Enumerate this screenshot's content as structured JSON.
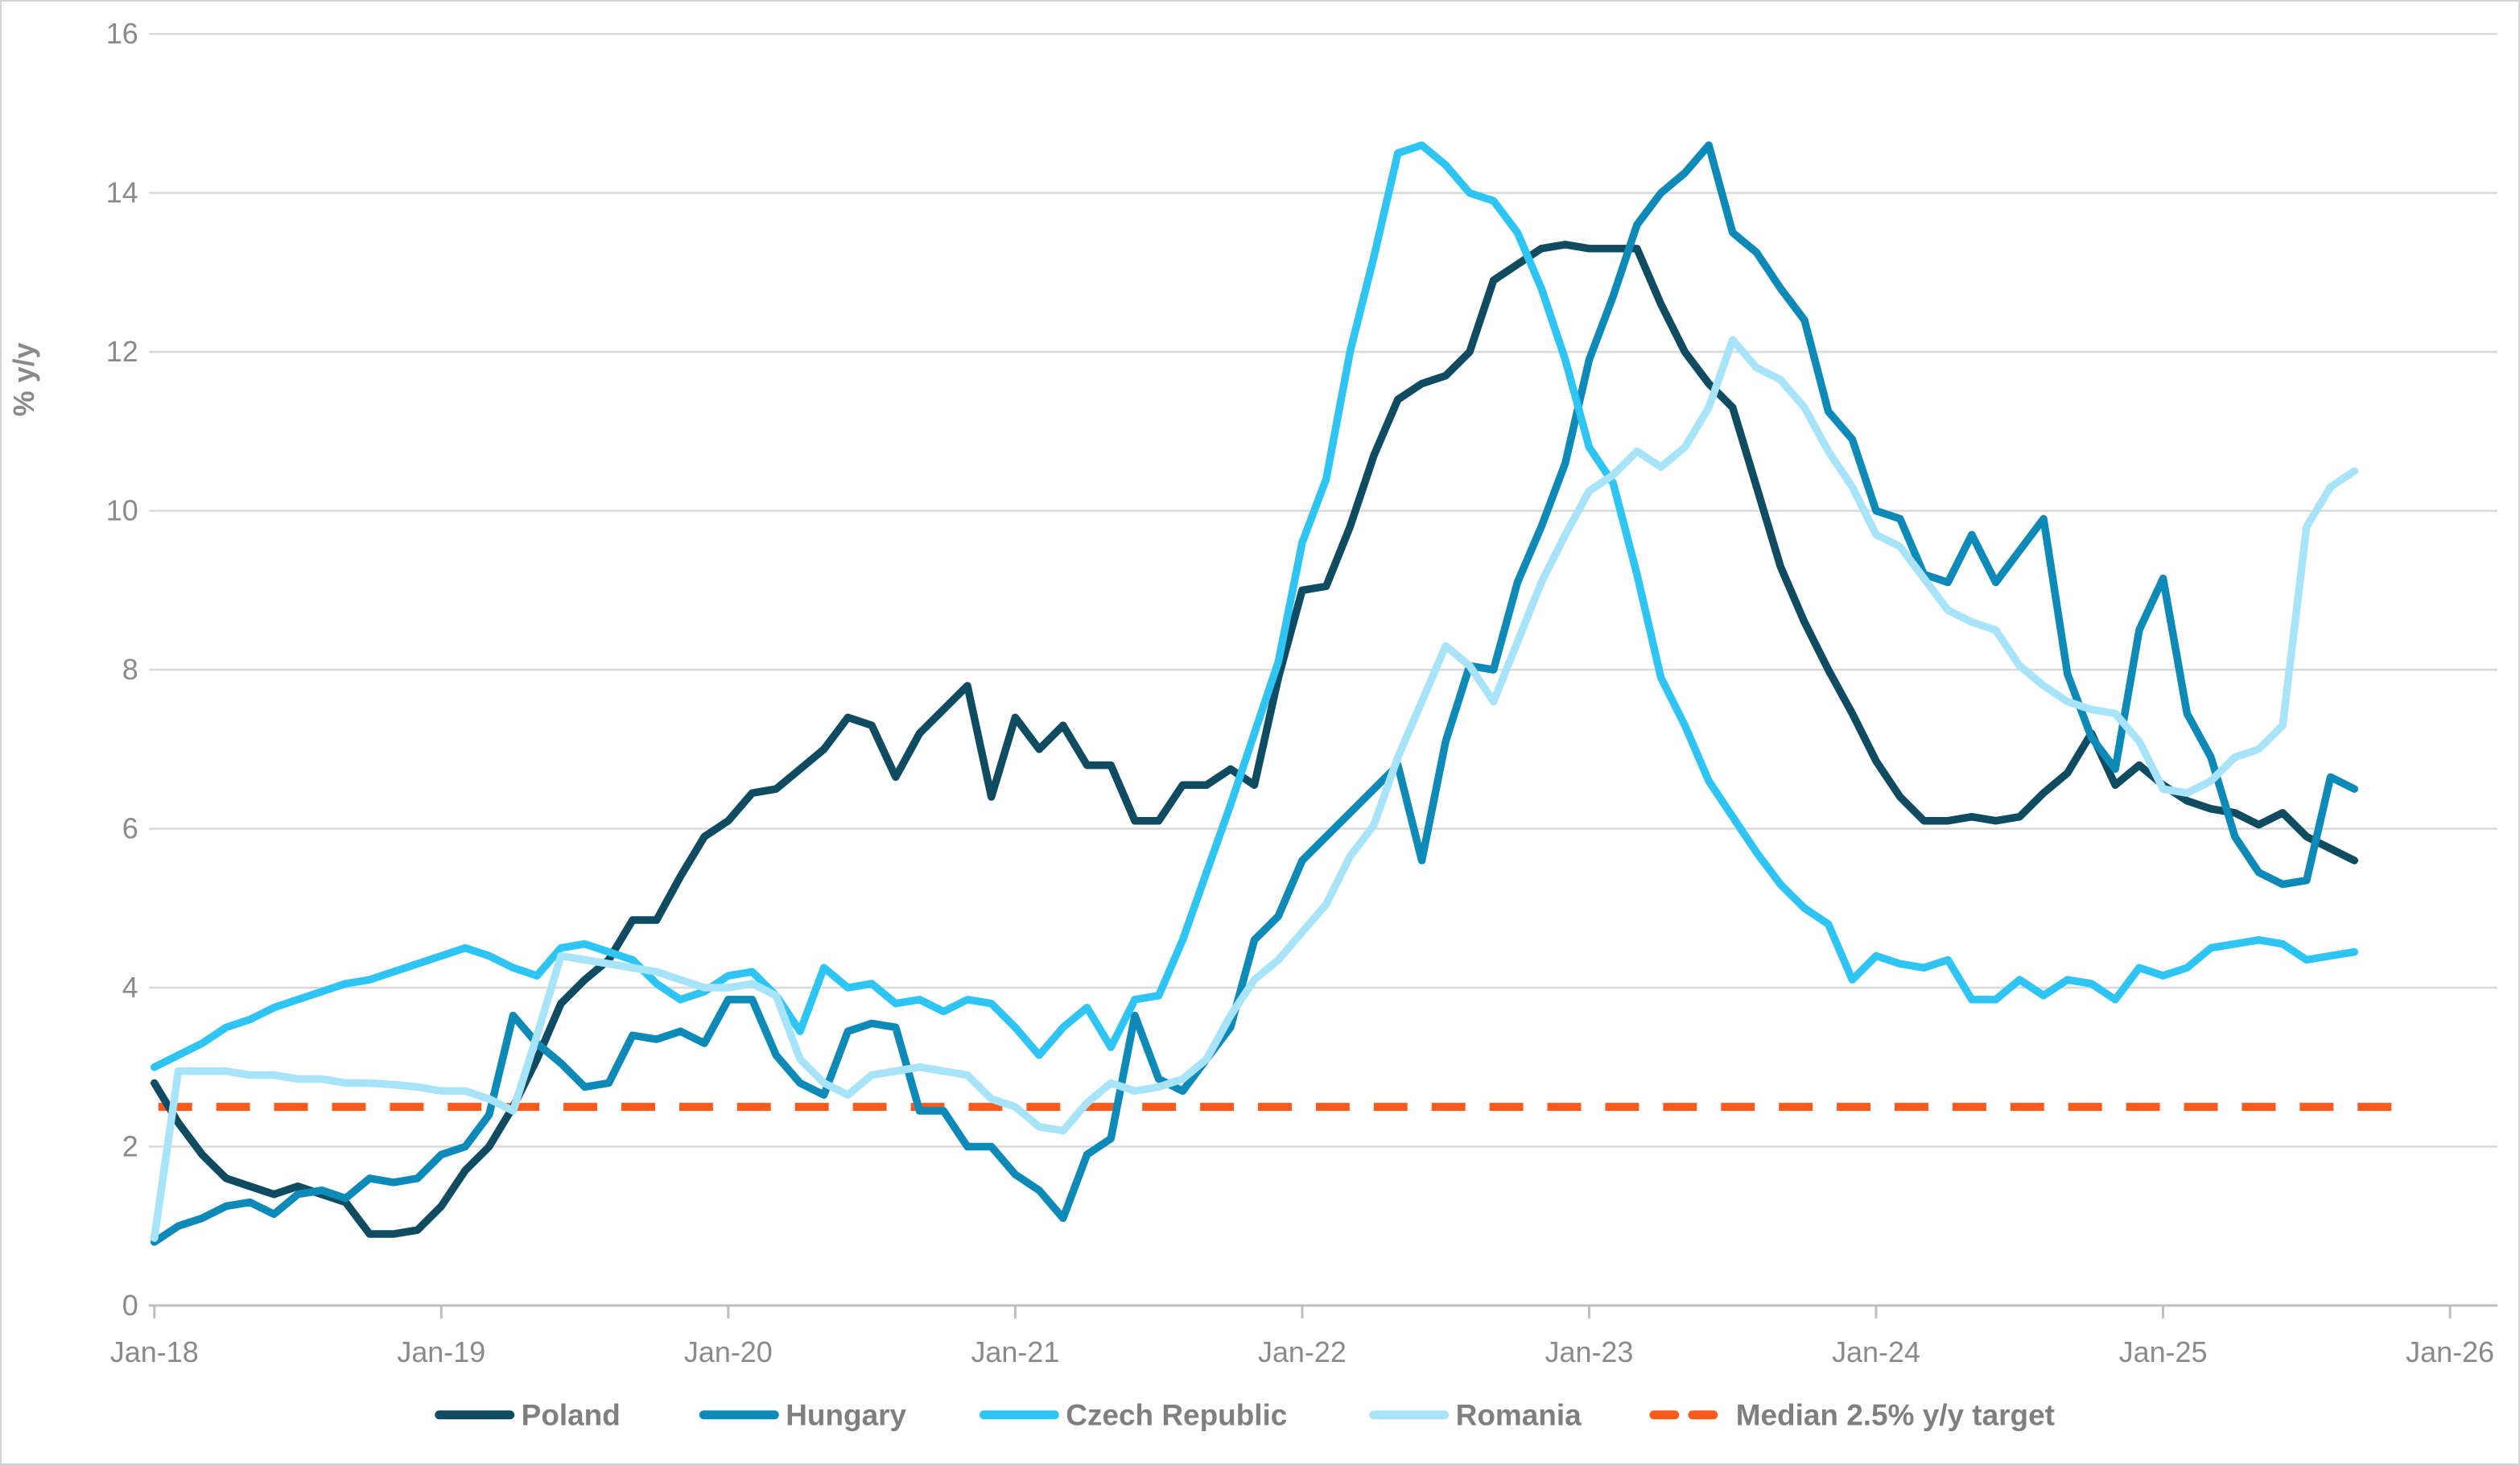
{
  "chart_data": {
    "type": "line",
    "title": "",
    "ylabel": "% y/y",
    "xlabel": "",
    "ylim": [
      0,
      16
    ],
    "y_tick_step": 2,
    "y_tick_labels": [
      "0",
      "2",
      "4",
      "6",
      "8",
      "10",
      "12",
      "14",
      "16"
    ],
    "x_tick_labels": [
      "Jan-18",
      "Jan-19",
      "Jan-20",
      "Jan-21",
      "Jan-22",
      "Jan-23",
      "Jan-24",
      "Jan-25",
      "Jan-26"
    ],
    "x_frequency": "monthly",
    "x_start": "Jan-18",
    "x_end": "Sep-25",
    "grid": true,
    "legend_position": "bottom",
    "colors": {
      "poland": "#0f4c61",
      "hungary": "#0e8ab8",
      "czech_republic": "#2ec4f3",
      "romania": "#a8e4f9",
      "target": "#f95b1d",
      "axis_text": "#8a8a8a",
      "legend_text": "#7f7f7f",
      "gridline": "#d9d9d9",
      "axis_line": "#bfbfbf"
    },
    "series": [
      {
        "name": "Poland",
        "color_key": "poland",
        "values": [
          2.8,
          2.3,
          1.9,
          1.6,
          1.5,
          1.4,
          1.5,
          1.4,
          1.3,
          0.9,
          0.9,
          0.95,
          1.25,
          1.7,
          2.0,
          2.5,
          3.1,
          3.8,
          4.1,
          4.35,
          4.85,
          4.85,
          5.4,
          5.9,
          6.1,
          6.45,
          6.5,
          6.75,
          7.0,
          7.4,
          7.3,
          6.65,
          7.2,
          7.5,
          7.8,
          6.4,
          7.4,
          7.0,
          7.3,
          6.8,
          6.8,
          6.1,
          6.1,
          6.55,
          6.55,
          6.75,
          6.55,
          7.9,
          9.0,
          9.05,
          9.8,
          10.7,
          11.4,
          11.6,
          11.7,
          12.0,
          12.9,
          13.1,
          13.3,
          13.35,
          13.3,
          13.3,
          13.3,
          12.6,
          12.0,
          11.6,
          11.3,
          10.3,
          9.3,
          8.6,
          8.0,
          7.45,
          6.85,
          6.4,
          6.1,
          6.1,
          6.15,
          6.1,
          6.15,
          6.45,
          6.7,
          7.2,
          6.55,
          6.8,
          6.55,
          6.35,
          6.25,
          6.2,
          6.05,
          6.2,
          5.9,
          5.75,
          5.6
        ]
      },
      {
        "name": "Hungary",
        "color_key": "hungary",
        "values": [
          0.8,
          1.0,
          1.1,
          1.25,
          1.3,
          1.15,
          1.4,
          1.45,
          1.35,
          1.6,
          1.55,
          1.6,
          1.9,
          2.0,
          2.4,
          3.65,
          3.3,
          3.05,
          2.75,
          2.8,
          3.4,
          3.35,
          3.45,
          3.3,
          3.85,
          3.85,
          3.15,
          2.8,
          2.65,
          3.45,
          3.55,
          3.5,
          2.45,
          2.45,
          2.0,
          2.0,
          1.65,
          1.45,
          1.1,
          1.9,
          2.1,
          3.65,
          2.85,
          2.7,
          3.1,
          3.5,
          4.6,
          4.9,
          5.6,
          5.9,
          6.2,
          6.5,
          6.8,
          5.6,
          7.1,
          8.05,
          8.0,
          9.1,
          9.8,
          10.6,
          11.9,
          12.7,
          13.6,
          14.0,
          14.25,
          14.6,
          13.5,
          13.25,
          12.8,
          12.4,
          11.25,
          10.9,
          10.0,
          9.9,
          9.2,
          9.1,
          9.7,
          9.1,
          9.5,
          9.9,
          7.95,
          7.15,
          6.75,
          8.5,
          9.15,
          7.45,
          6.9,
          5.9,
          5.45,
          5.3,
          5.35,
          6.65,
          6.5
        ]
      },
      {
        "name": "Czech Republic",
        "color_key": "czech_republic",
        "values": [
          3.0,
          3.15,
          3.3,
          3.5,
          3.6,
          3.75,
          3.85,
          3.95,
          4.05,
          4.1,
          4.2,
          4.3,
          4.4,
          4.5,
          4.4,
          4.25,
          4.15,
          4.5,
          4.55,
          4.45,
          4.35,
          4.05,
          3.85,
          3.95,
          4.15,
          4.2,
          3.9,
          3.45,
          4.25,
          4.0,
          4.05,
          3.8,
          3.85,
          3.7,
          3.85,
          3.8,
          3.5,
          3.15,
          3.5,
          3.75,
          3.25,
          3.85,
          3.9,
          4.6,
          5.45,
          6.3,
          7.2,
          8.1,
          9.6,
          10.4,
          12.0,
          13.2,
          14.5,
          14.6,
          14.35,
          14.0,
          13.9,
          13.5,
          12.8,
          11.9,
          10.8,
          10.35,
          9.2,
          7.9,
          7.3,
          6.6,
          6.15,
          5.7,
          5.3,
          5.0,
          4.8,
          4.1,
          4.4,
          4.3,
          4.25,
          4.35,
          3.85,
          3.85,
          4.1,
          3.9,
          4.1,
          4.05,
          3.85,
          4.25,
          4.15,
          4.25,
          4.5,
          4.55,
          4.6,
          4.55,
          4.35,
          4.4,
          4.45
        ]
      },
      {
        "name": "Romania",
        "color_key": "romania",
        "values": [
          0.85,
          2.95,
          2.95,
          2.95,
          2.9,
          2.9,
          2.85,
          2.85,
          2.8,
          2.8,
          2.78,
          2.75,
          2.7,
          2.7,
          2.6,
          2.45,
          3.4,
          4.4,
          4.35,
          4.3,
          4.25,
          4.2,
          4.1,
          4.0,
          4.0,
          4.05,
          3.9,
          3.1,
          2.8,
          2.65,
          2.9,
          2.95,
          3.0,
          2.95,
          2.9,
          2.6,
          2.5,
          2.25,
          2.2,
          2.55,
          2.8,
          2.7,
          2.75,
          2.85,
          3.1,
          3.65,
          4.1,
          4.35,
          4.7,
          5.05,
          5.65,
          6.05,
          6.9,
          7.6,
          8.3,
          8.05,
          7.6,
          8.35,
          9.1,
          9.7,
          10.25,
          10.45,
          10.75,
          10.55,
          10.8,
          11.3,
          12.15,
          11.8,
          11.65,
          11.3,
          10.75,
          10.3,
          9.7,
          9.55,
          9.15,
          8.75,
          8.6,
          8.5,
          8.05,
          7.8,
          7.6,
          7.5,
          7.45,
          7.1,
          6.5,
          6.45,
          6.6,
          6.9,
          7.0,
          7.3,
          9.8,
          10.3,
          10.5
        ]
      }
    ],
    "target_line": {
      "name": "Median 2.5% y/y target",
      "value": 2.5,
      "color_key": "target",
      "style": "dashed"
    },
    "legend": [
      "Poland",
      "Hungary",
      "Czech Republic",
      "Romania",
      "Median 2.5% y/y target"
    ]
  }
}
